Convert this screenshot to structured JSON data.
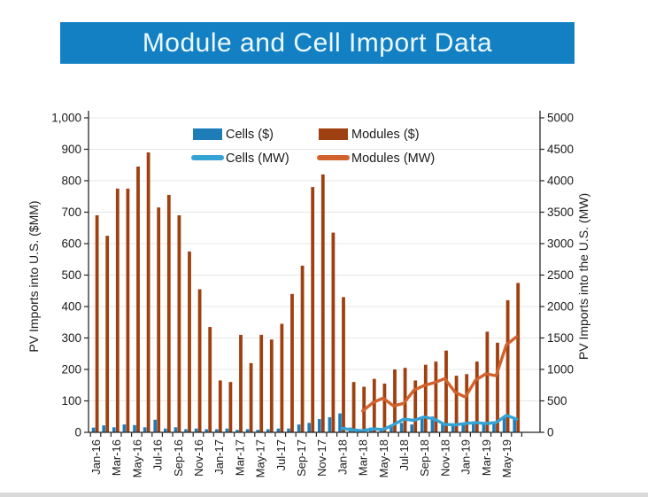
{
  "slide": {
    "title": "Module and Cell Import Data",
    "banner_color": "#1480c4"
  },
  "chart_data": {
    "type": "combo-bar-line",
    "title": "",
    "categories": [
      "Jan-16",
      "Feb-16",
      "Mar-16",
      "Apr-16",
      "May-16",
      "Jun-16",
      "Jul-16",
      "Aug-16",
      "Sep-16",
      "Oct-16",
      "Nov-16",
      "Dec-16",
      "Jan-17",
      "Feb-17",
      "Mar-17",
      "Apr-17",
      "May-17",
      "Jun-17",
      "Jul-17",
      "Aug-17",
      "Sep-17",
      "Oct-17",
      "Nov-17",
      "Dec-17",
      "Jan-18",
      "Feb-18",
      "Mar-18",
      "Apr-18",
      "May-18",
      "Jun-18",
      "Jul-18",
      "Aug-18",
      "Sep-18",
      "Oct-18",
      "Nov-18",
      "Dec-18",
      "Jan-19",
      "Feb-19",
      "Mar-19",
      "Apr-19",
      "May-19",
      "Jun-19"
    ],
    "x_tick_label_every": 2,
    "bar_series": [
      {
        "name": "Cells ($)",
        "axis": "left",
        "color": "#1e7db9",
        "values": [
          15,
          22,
          16,
          25,
          23,
          16,
          40,
          12,
          16,
          10,
          12,
          10,
          10,
          12,
          8,
          10,
          8,
          10,
          12,
          12,
          25,
          30,
          42,
          48,
          60,
          15,
          10,
          15,
          10,
          20,
          30,
          25,
          45,
          50,
          30,
          25,
          30,
          30,
          30,
          35,
          50,
          45
        ]
      },
      {
        "name": "Modules ($)",
        "axis": "left",
        "color": "#9e4010",
        "values": [
          690,
          625,
          775,
          775,
          845,
          890,
          715,
          755,
          690,
          575,
          455,
          335,
          165,
          160,
          310,
          220,
          310,
          295,
          345,
          440,
          530,
          780,
          820,
          635,
          430,
          160,
          145,
          170,
          155,
          200,
          205,
          165,
          215,
          225,
          260,
          180,
          185,
          225,
          320,
          285,
          420,
          475
        ]
      }
    ],
    "line_series": [
      {
        "name": "Cells (MW)",
        "axis": "right",
        "color": "#35a3d4",
        "start_index": 24,
        "values": [
          65,
          40,
          25,
          55,
          45,
          120,
          210,
          190,
          245,
          210,
          125,
          120,
          140,
          155,
          140,
          155,
          270,
          210
        ]
      },
      {
        "name": "Modules (MW)",
        "axis": "right",
        "color": "#d2622d",
        "start_index": 26,
        "values": [
          340,
          470,
          545,
          420,
          460,
          670,
          745,
          790,
          855,
          640,
          560,
          830,
          930,
          900,
          1390,
          1520
        ]
      }
    ],
    "left_axis": {
      "label": "PV  Imports into U.S. ($MM)",
      "min": 0,
      "max": 1000,
      "tick_step": 100,
      "tick_labels": [
        "0",
        "100",
        "200",
        "300",
        "400",
        "500",
        "600",
        "700",
        "800",
        "900",
        "1,000"
      ]
    },
    "right_axis": {
      "label": "PV Imports into the U.S. (MW)",
      "min": 0,
      "max": 5000,
      "tick_step": 500,
      "tick_labels": [
        "0",
        "500",
        "1000",
        "1500",
        "2000",
        "2500",
        "3000",
        "3500",
        "4000",
        "4500",
        "5000"
      ]
    },
    "grid": true,
    "legend_position": "top-inside",
    "axis_text_color": "#1a1a1a",
    "grid_color": "#e7e7e7",
    "spine_color": "#262626"
  }
}
